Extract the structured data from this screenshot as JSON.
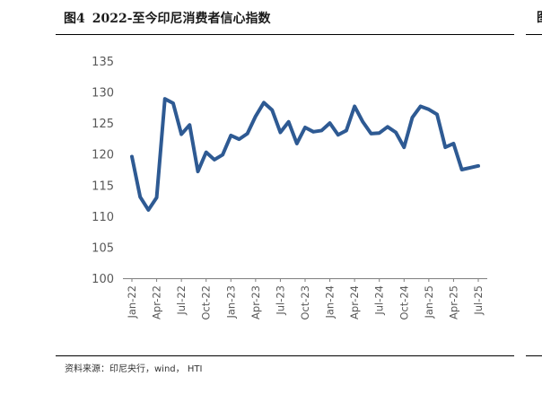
{
  "figure": {
    "number": "图4",
    "title": "2022-至今印尼消费者信心指数",
    "source": "资料来源：印尼央行，wind， HTI",
    "right_edge_mark": "图"
  },
  "colors": {
    "line": "#2E5A93",
    "axis": "#7f7f7f",
    "tick": "#595959"
  },
  "chart_data": {
    "type": "line",
    "title": "2022-至今印尼消费者信心指数",
    "xlabel": "",
    "ylabel": "",
    "ylim": [
      100,
      135
    ],
    "yticks": [
      100,
      105,
      110,
      115,
      120,
      125,
      130,
      135
    ],
    "x_tick_labels": [
      "Jan-22",
      "Apr-22",
      "Jul-22",
      "Oct-22",
      "Jan-23",
      "Apr-23",
      "Jul-23",
      "Oct-23",
      "Jan-24",
      "Apr-24",
      "Jul-24",
      "Oct-24",
      "Jan-25",
      "Apr-25",
      "Jul-25"
    ],
    "grid": false,
    "legend": "none",
    "categories": [
      "Jan-22",
      "Feb-22",
      "Mar-22",
      "Apr-22",
      "May-22",
      "Jun-22",
      "Jul-22",
      "Aug-22",
      "Sep-22",
      "Oct-22",
      "Nov-22",
      "Dec-22",
      "Jan-23",
      "Feb-23",
      "Mar-23",
      "Apr-23",
      "May-23",
      "Jun-23",
      "Jul-23",
      "Aug-23",
      "Sep-23",
      "Oct-23",
      "Nov-23",
      "Dec-23",
      "Jan-24",
      "Feb-24",
      "Mar-24",
      "Apr-24",
      "May-24",
      "Jun-24",
      "Jul-24",
      "Aug-24",
      "Sep-24",
      "Oct-24",
      "Nov-24",
      "Dec-24",
      "Jan-25",
      "Feb-25",
      "Mar-25",
      "Apr-25",
      "May-25",
      "Jun-25",
      "Jul-25"
    ],
    "values": [
      119.6,
      113.1,
      111.0,
      113.0,
      128.9,
      128.2,
      123.2,
      124.7,
      117.2,
      120.3,
      119.1,
      119.9,
      123.0,
      122.4,
      123.3,
      126.1,
      128.3,
      127.1,
      123.5,
      125.2,
      121.7,
      124.3,
      123.6,
      123.8,
      125.0,
      123.1,
      123.8,
      127.7,
      125.2,
      123.3,
      123.4,
      124.4,
      123.5,
      121.1,
      125.9,
      127.7,
      127.2,
      126.4,
      121.1,
      121.7,
      117.5,
      117.8,
      118.1
    ]
  }
}
